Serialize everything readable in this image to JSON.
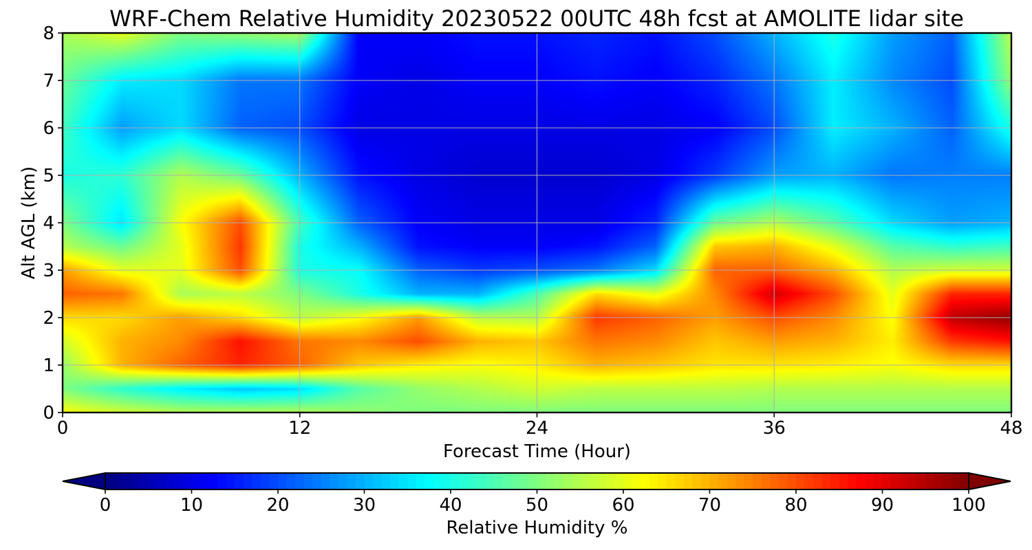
{
  "chart_data": {
    "type": "heatmap",
    "title": "WRF-Chem Relative Humidity 20230522 00UTC 48h fcst at AMOLITE lidar site",
    "xlabel": "Forecast Time (Hour)",
    "ylabel": "Alt AGL (km)",
    "xlim": [
      0,
      48
    ],
    "ylim": [
      0,
      8
    ],
    "xticks": [
      0,
      12,
      24,
      36,
      48
    ],
    "yticks": [
      0,
      1,
      2,
      3,
      4,
      5,
      6,
      7,
      8
    ],
    "grid": true,
    "colorscale": "jet",
    "colorbar": {
      "label": "Relative Humidity %",
      "range": [
        0,
        100
      ],
      "ticks": [
        0,
        10,
        20,
        30,
        40,
        50,
        60,
        70,
        80,
        90,
        100
      ],
      "extend": "both",
      "orientation": "horizontal"
    },
    "x": [
      0,
      3,
      6,
      9,
      12,
      15,
      18,
      21,
      24,
      27,
      30,
      33,
      36,
      39,
      42,
      45,
      48
    ],
    "y": [
      0,
      0.5,
      1,
      1.5,
      2,
      2.5,
      3,
      3.5,
      4,
      5,
      6,
      7,
      8
    ],
    "z": [
      [
        62,
        58,
        55,
        55,
        55,
        52,
        50,
        50,
        50,
        50,
        50,
        50,
        50,
        50,
        50,
        50,
        50
      ],
      [
        50,
        42,
        36,
        32,
        34,
        46,
        52,
        55,
        58,
        56,
        56,
        56,
        55,
        55,
        55,
        55,
        55
      ],
      [
        52,
        70,
        78,
        84,
        78,
        68,
        64,
        62,
        64,
        70,
        68,
        65,
        65,
        64,
        62,
        66,
        66
      ],
      [
        58,
        70,
        74,
        86,
        76,
        74,
        80,
        70,
        68,
        76,
        74,
        68,
        72,
        70,
        64,
        82,
        86
      ],
      [
        66,
        66,
        72,
        66,
        56,
        62,
        72,
        56,
        55,
        82,
        78,
        72,
        80,
        74,
        62,
        94,
        98
      ],
      [
        78,
        76,
        54,
        56,
        50,
        40,
        30,
        30,
        45,
        66,
        60,
        74,
        92,
        80,
        60,
        84,
        84
      ],
      [
        72,
        60,
        60,
        80,
        40,
        38,
        22,
        18,
        20,
        24,
        34,
        78,
        78,
        70,
        55,
        58,
        58
      ],
      [
        55,
        48,
        60,
        82,
        40,
        30,
        14,
        12,
        12,
        14,
        22,
        68,
        70,
        60,
        46,
        42,
        44
      ],
      [
        50,
        35,
        62,
        80,
        44,
        22,
        12,
        10,
        10,
        10,
        16,
        48,
        55,
        46,
        34,
        28,
        30
      ],
      [
        40,
        42,
        55,
        48,
        30,
        14,
        10,
        8,
        8,
        8,
        10,
        18,
        28,
        30,
        24,
        25,
        25
      ],
      [
        44,
        28,
        34,
        22,
        20,
        10,
        10,
        10,
        10,
        10,
        10,
        12,
        20,
        36,
        30,
        22,
        40
      ],
      [
        48,
        36,
        34,
        24,
        24,
        12,
        10,
        12,
        12,
        14,
        12,
        16,
        24,
        36,
        26,
        20,
        52
      ],
      [
        54,
        60,
        50,
        52,
        54,
        12,
        12,
        14,
        14,
        16,
        14,
        20,
        30,
        40,
        28,
        22,
        56
      ]
    ]
  }
}
